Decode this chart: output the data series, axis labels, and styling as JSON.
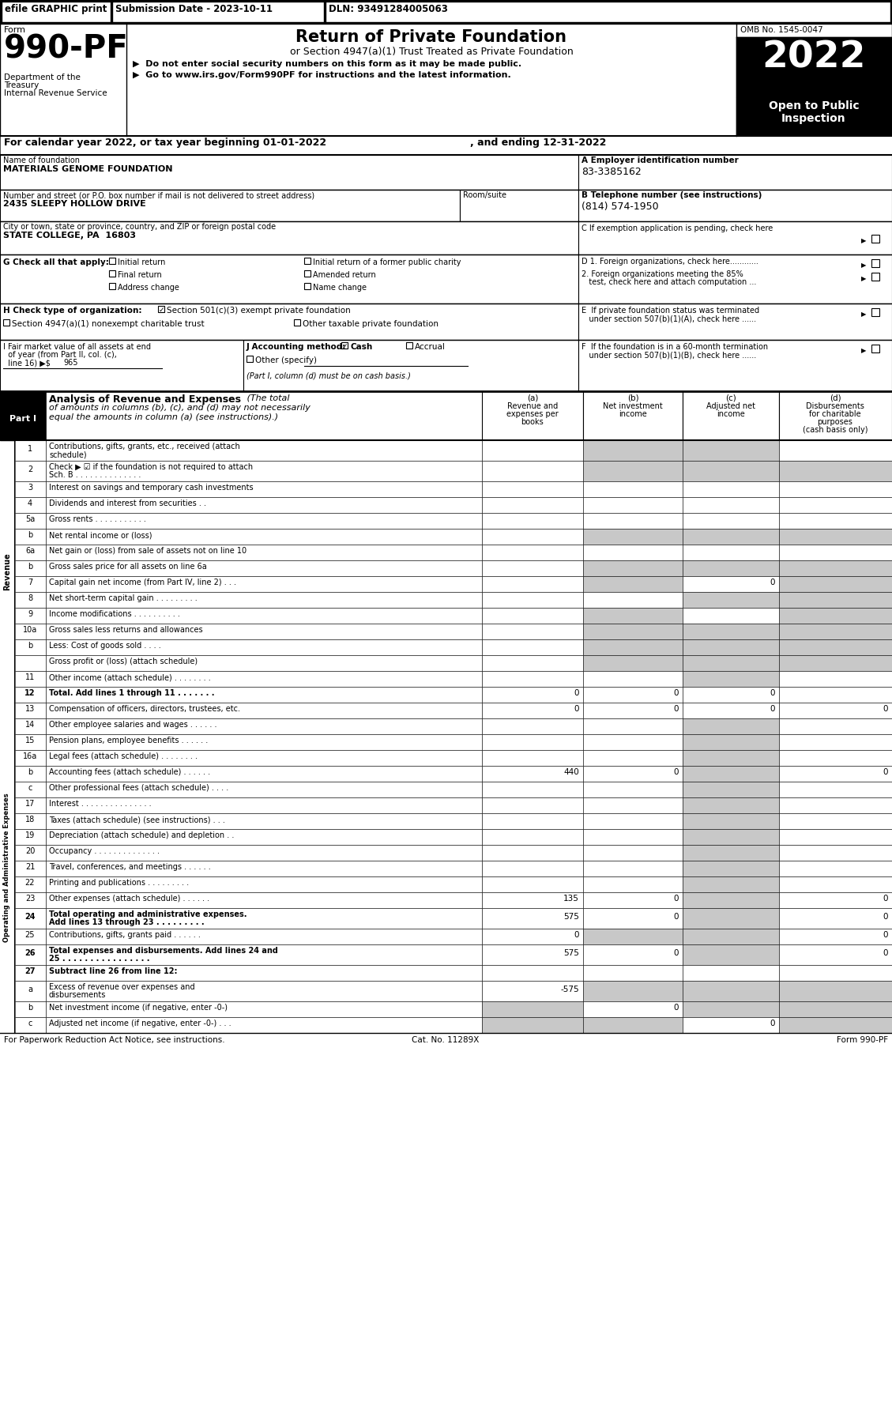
{
  "header_bar": {
    "efile_text": "efile GRAPHIC print",
    "submission_text": "Submission Date - 2023-10-11",
    "dln_text": "DLN: 93491284005063"
  },
  "form_number": "990-PF",
  "form_label": "Form",
  "title": "Return of Private Foundation",
  "subtitle": "or Section 4947(a)(1) Trust Treated as Private Foundation",
  "bullet1": "▶  Do not enter social security numbers on this form as it may be made public.",
  "bullet2": "▶  Go to www.irs.gov/Form990PF for instructions and the latest information.",
  "dept_text": "Department of the\nTreasury\nInternal Revenue Service",
  "omb": "OMB No. 1545-0047",
  "year": "2022",
  "open_text": "Open to Public\nInspection",
  "cal_year_text": "For calendar year 2022, or tax year beginning 01-01-2022",
  "ending_text": ", and ending 12-31-2022",
  "name_label": "Name of foundation",
  "name_value": "MATERIALS GENOME FOUNDATION",
  "ein_label": "A Employer identification number",
  "ein_value": "83-3385162",
  "address_label": "Number and street (or P.O. box number if mail is not delivered to street address)",
  "address_value": "2435 SLEEPY HOLLOW DRIVE",
  "room_label": "Room/suite",
  "city_label": "City or town, state or province, country, and ZIP or foreign postal code",
  "city_value": "STATE COLLEGE, PA  16803",
  "phone_label": "B Telephone number (see instructions)",
  "phone_value": "(814) 574-1950",
  "c_label": "C If exemption application is pending, check here",
  "g_label": "G Check all that apply:",
  "d1_label": "D 1. Foreign organizations, check here............",
  "d2_line1": "2. Foreign organizations meeting the 85%",
  "d2_line2": "   test, check here and attach computation ...",
  "e_line1": "E  If private foundation status was terminated",
  "e_line2": "   under section 507(b)(1)(A), check here ......",
  "h_label": "H Check type of organization:",
  "h_checked": "Section 501(c)(3) exempt private foundation",
  "h_unchecked1": "Section 4947(a)(1) nonexempt charitable trust",
  "h_unchecked2": "Other taxable private foundation",
  "i_line1": "I Fair market value of all assets at end",
  "i_line2": "  of year (from Part II, col. (c),",
  "i_line3": "  line 16) ▶$",
  "i_value": "965",
  "j_label": "J Accounting method:",
  "j_cash": "Cash",
  "j_accrual": "Accrual",
  "j_other": "Other (specify)",
  "j_note": "(Part I, column (d) must be on cash basis.)",
  "f_line1": "F  If the foundation is in a 60-month termination",
  "f_line2": "   under section 507(b)(1)(B), check here ......",
  "part1_label": "Part I",
  "part1_title": "Analysis of Revenue and Expenses",
  "part1_italic": "(The total",
  "part1_italic2": "of amounts in columns (b), (c), and (d) may not necessarily",
  "part1_italic3": "equal the amounts in column (a) (see instructions).)",
  "col_a_lines": [
    "(a)",
    "Revenue and",
    "expenses per",
    "books"
  ],
  "col_b_lines": [
    "(b)",
    "Net investment",
    "income"
  ],
  "col_c_lines": [
    "(c)",
    "Adjusted net",
    "income"
  ],
  "col_d_lines": [
    "(d)",
    "Disbursements",
    "for charitable",
    "purposes",
    "(cash basis only)"
  ],
  "rows": [
    {
      "num": "1",
      "label1": "Contributions, gifts, grants, etc., received (attach",
      "label2": "schedule)",
      "a": "",
      "b": "",
      "c": "",
      "d": "",
      "shaded": [
        false,
        true,
        true,
        false
      ],
      "tall": true
    },
    {
      "num": "2",
      "label1": "Check ▶ ☑ if the foundation is not required to attach",
      "label2": "Sch. B . . . . . . . . . . . . . .",
      "a": "",
      "b": "",
      "c": "",
      "d": "",
      "shaded": [
        false,
        true,
        true,
        true
      ],
      "tall": true
    },
    {
      "num": "3",
      "label1": "Interest on savings and temporary cash investments",
      "label2": "",
      "a": "",
      "b": "",
      "c": "",
      "d": "",
      "shaded": [
        false,
        false,
        false,
        false
      ],
      "tall": false
    },
    {
      "num": "4",
      "label1": "Dividends and interest from securities . .",
      "label2": "",
      "a": "",
      "b": "",
      "c": "",
      "d": "",
      "shaded": [
        false,
        false,
        false,
        false
      ],
      "tall": false
    },
    {
      "num": "5a",
      "label1": "Gross rents . . . . . . . . . . .",
      "label2": "",
      "a": "",
      "b": "",
      "c": "",
      "d": "",
      "shaded": [
        false,
        false,
        false,
        false
      ],
      "tall": false
    },
    {
      "num": "b",
      "label1": "Net rental income or (loss)",
      "label2": "",
      "a": "",
      "b": "",
      "c": "",
      "d": "",
      "shaded": [
        false,
        true,
        true,
        true
      ],
      "tall": false
    },
    {
      "num": "6a",
      "label1": "Net gain or (loss) from sale of assets not on line 10",
      "label2": "",
      "a": "",
      "b": "",
      "c": "",
      "d": "",
      "shaded": [
        false,
        false,
        false,
        false
      ],
      "tall": false
    },
    {
      "num": "b",
      "label1": "Gross sales price for all assets on line 6a",
      "label2": "",
      "a": "",
      "b": "",
      "c": "",
      "d": "",
      "shaded": [
        false,
        true,
        true,
        true
      ],
      "tall": false
    },
    {
      "num": "7",
      "label1": "Capital gain net income (from Part IV, line 2) . . .",
      "label2": "",
      "a": "",
      "b": "",
      "c": "0",
      "d": "",
      "shaded": [
        false,
        true,
        false,
        true
      ],
      "tall": false
    },
    {
      "num": "8",
      "label1": "Net short-term capital gain . . . . . . . . .",
      "label2": "",
      "a": "",
      "b": "",
      "c": "",
      "d": "",
      "shaded": [
        false,
        false,
        true,
        true
      ],
      "tall": false
    },
    {
      "num": "9",
      "label1": "Income modifications . . . . . . . . . .",
      "label2": "",
      "a": "",
      "b": "",
      "c": "",
      "d": "",
      "shaded": [
        false,
        true,
        false,
        true
      ],
      "tall": false
    },
    {
      "num": "10a",
      "label1": "Gross sales less returns and allowances",
      "label2": "",
      "a": "",
      "b": "",
      "c": "",
      "d": "",
      "shaded": [
        false,
        true,
        true,
        true
      ],
      "tall": false
    },
    {
      "num": "b",
      "label1": "Less: Cost of goods sold . . . .",
      "label2": "",
      "a": "",
      "b": "",
      "c": "",
      "d": "",
      "shaded": [
        false,
        true,
        true,
        true
      ],
      "tall": false
    },
    {
      "num": "",
      "label1": "Gross profit or (loss) (attach schedule)",
      "label2": "",
      "a": "",
      "b": "",
      "c": "",
      "d": "",
      "shaded": [
        false,
        true,
        true,
        true
      ],
      "tall": false
    },
    {
      "num": "11",
      "label1": "Other income (attach schedule) . . . . . . . .",
      "label2": "",
      "a": "",
      "b": "",
      "c": "",
      "d": "",
      "shaded": [
        false,
        false,
        true,
        false
      ],
      "tall": false
    },
    {
      "num": "12",
      "label1": "Total. Add lines 1 through 11 . . . . . . .",
      "label2": "",
      "a": "0",
      "b": "0",
      "c": "0",
      "d": "",
      "shaded": [
        false,
        false,
        false,
        false
      ],
      "tall": false,
      "bold": true
    },
    {
      "num": "13",
      "label1": "Compensation of officers, directors, trustees, etc.",
      "label2": "",
      "a": "0",
      "b": "0",
      "c": "0",
      "d": "0",
      "shaded": [
        false,
        false,
        false,
        false
      ],
      "tall": false
    },
    {
      "num": "14",
      "label1": "Other employee salaries and wages . . . . . .",
      "label2": "",
      "a": "",
      "b": "",
      "c": "",
      "d": "",
      "shaded": [
        false,
        false,
        true,
        false
      ],
      "tall": false
    },
    {
      "num": "15",
      "label1": "Pension plans, employee benefits . . . . . .",
      "label2": "",
      "a": "",
      "b": "",
      "c": "",
      "d": "",
      "shaded": [
        false,
        false,
        true,
        false
      ],
      "tall": false
    },
    {
      "num": "16a",
      "label1": "Legal fees (attach schedule) . . . . . . . .",
      "label2": "",
      "a": "",
      "b": "",
      "c": "",
      "d": "",
      "shaded": [
        false,
        false,
        true,
        false
      ],
      "tall": false
    },
    {
      "num": "b",
      "label1": "Accounting fees (attach schedule) . . . . . .",
      "label2": "",
      "a": "440",
      "b": "0",
      "c": "",
      "d": "0",
      "shaded": [
        false,
        false,
        true,
        false
      ],
      "tall": false
    },
    {
      "num": "c",
      "label1": "Other professional fees (attach schedule) . . . .",
      "label2": "",
      "a": "",
      "b": "",
      "c": "",
      "d": "",
      "shaded": [
        false,
        false,
        true,
        false
      ],
      "tall": false
    },
    {
      "num": "17",
      "label1": "Interest . . . . . . . . . . . . . . .",
      "label2": "",
      "a": "",
      "b": "",
      "c": "",
      "d": "",
      "shaded": [
        false,
        false,
        true,
        false
      ],
      "tall": false
    },
    {
      "num": "18",
      "label1": "Taxes (attach schedule) (see instructions) . . .",
      "label2": "",
      "a": "",
      "b": "",
      "c": "",
      "d": "",
      "shaded": [
        false,
        false,
        true,
        false
      ],
      "tall": false
    },
    {
      "num": "19",
      "label1": "Depreciation (attach schedule) and depletion . .",
      "label2": "",
      "a": "",
      "b": "",
      "c": "",
      "d": "",
      "shaded": [
        false,
        false,
        true,
        false
      ],
      "tall": false
    },
    {
      "num": "20",
      "label1": "Occupancy . . . . . . . . . . . . . .",
      "label2": "",
      "a": "",
      "b": "",
      "c": "",
      "d": "",
      "shaded": [
        false,
        false,
        true,
        false
      ],
      "tall": false
    },
    {
      "num": "21",
      "label1": "Travel, conferences, and meetings . . . . . .",
      "label2": "",
      "a": "",
      "b": "",
      "c": "",
      "d": "",
      "shaded": [
        false,
        false,
        true,
        false
      ],
      "tall": false
    },
    {
      "num": "22",
      "label1": "Printing and publications . . . . . . . . .",
      "label2": "",
      "a": "",
      "b": "",
      "c": "",
      "d": "",
      "shaded": [
        false,
        false,
        true,
        false
      ],
      "tall": false
    },
    {
      "num": "23",
      "label1": "Other expenses (attach schedule) . . . . . .",
      "label2": "",
      "a": "135",
      "b": "0",
      "c": "",
      "d": "0",
      "shaded": [
        false,
        false,
        true,
        false
      ],
      "tall": false
    },
    {
      "num": "24",
      "label1": "Total operating and administrative expenses.",
      "label2": "Add lines 13 through 23 . . . . . . . . .",
      "a": "575",
      "b": "0",
      "c": "",
      "d": "0",
      "shaded": [
        false,
        false,
        true,
        false
      ],
      "tall": true,
      "bold": true
    },
    {
      "num": "25",
      "label1": "Contributions, gifts, grants paid . . . . . .",
      "label2": "",
      "a": "0",
      "b": "",
      "c": "",
      "d": "0",
      "shaded": [
        false,
        true,
        true,
        false
      ],
      "tall": false
    },
    {
      "num": "26",
      "label1": "Total expenses and disbursements. Add lines 24 and",
      "label2": "25 . . . . . . . . . . . . . . . .",
      "a": "575",
      "b": "0",
      "c": "",
      "d": "0",
      "shaded": [
        false,
        false,
        true,
        false
      ],
      "tall": true,
      "bold": true
    },
    {
      "num": "27",
      "label1": "Subtract line 26 from line 12:",
      "label2": "",
      "a": "",
      "b": "",
      "c": "",
      "d": "",
      "shaded": [
        false,
        false,
        false,
        false
      ],
      "tall": false,
      "bold": true
    },
    {
      "num": "a",
      "label1": "Excess of revenue over expenses and",
      "label2": "disbursements",
      "a": "-575",
      "b": "",
      "c": "",
      "d": "",
      "shaded": [
        false,
        true,
        true,
        true
      ],
      "tall": true
    },
    {
      "num": "b",
      "label1": "Net investment income (if negative, enter -0-)",
      "label2": "",
      "a": "",
      "b": "0",
      "c": "",
      "d": "",
      "shaded": [
        true,
        false,
        true,
        true
      ],
      "tall": false
    },
    {
      "num": "c",
      "label1": "Adjusted net income (if negative, enter -0-) . . .",
      "label2": "",
      "a": "",
      "b": "",
      "c": "0",
      "d": "",
      "shaded": [
        true,
        true,
        false,
        true
      ],
      "tall": false
    }
  ],
  "rev_rows": 16,
  "footer_left": "For Paperwork Reduction Act Notice, see instructions.",
  "footer_cat": "Cat. No. 11289X",
  "footer_right": "Form 990-PF",
  "revenue_label": "Revenue",
  "expenses_label": "Operating and Administrative Expenses",
  "shaded_color": "#c8c8c8"
}
